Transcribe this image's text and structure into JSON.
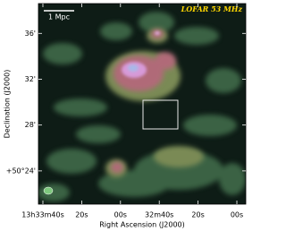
{
  "chart_data": {
    "type": "image",
    "title": "LOFAR 53 MHz",
    "scale_bar": "1 Mpc",
    "x_label": "Right Ascension (J2000)",
    "y_label": "Declination (J2000)",
    "xlim": [
      48822.3,
      48715.4
    ],
    "xticks": [
      {
        "value": 48820,
        "label": "13h33m40s"
      },
      {
        "value": 48800,
        "label": "20s"
      },
      {
        "value": 48780,
        "label": "00s"
      },
      {
        "value": 48760,
        "label": "32m40s"
      },
      {
        "value": 48740,
        "label": "20s"
      },
      {
        "value": 48720,
        "label": "00s"
      }
    ],
    "ylim": [
      21.1,
      38.6
    ],
    "yticks": [
      {
        "value": 24,
        "label": "+50°24'"
      },
      {
        "value": 28,
        "label": "28'"
      },
      {
        "value": 32,
        "label": "32'"
      },
      {
        "value": 36,
        "label": "36'"
      }
    ]
  }
}
